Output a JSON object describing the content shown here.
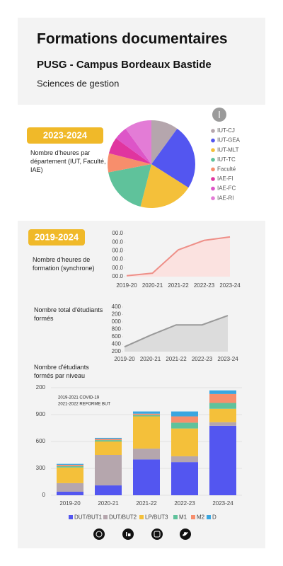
{
  "header": {
    "title": "Formations documentaires",
    "subtitle": "PUSG - Campus Bordeaux Bastide",
    "section": "Sciences de gestion"
  },
  "chart_data": [
    {
      "type": "pie",
      "badge": "2023-2024",
      "title": "Nombre d'heures par département (IUT, Faculté, IAE)",
      "categories": [
        "IUT-CJ",
        "IUT-GEA",
        "IUT-MLT",
        "IUT-TC",
        "Faculté",
        "IAE-FI",
        "IAE-FC",
        "IAE-RI"
      ],
      "values": [
        10,
        24,
        20,
        18,
        7,
        6,
        5,
        10
      ],
      "colors": [
        "#b5a6ad",
        "#5356f0",
        "#f4c03a",
        "#5fc29b",
        "#f78e6c",
        "#e0359f",
        "#dd55c8",
        "#e37cd6"
      ]
    },
    {
      "type": "line",
      "badge": "2019-2024",
      "title": "Nombre d'heures de formation (synchrone)",
      "categories": [
        "2019-20",
        "2020-21",
        "2021-22",
        "2022-23",
        "2023-24"
      ],
      "values": [
        10,
        40,
        310,
        420,
        460
      ],
      "color": "#ee8f88",
      "fill": "#fbe2e0",
      "ylim": [
        0,
        500
      ],
      "yticks": [
        {
          "value": 0,
          "label": "00.0"
        },
        {
          "value": 100,
          "label": "00.0"
        },
        {
          "value": 200,
          "label": "00.0"
        },
        {
          "value": 300,
          "label": "00.0"
        },
        {
          "value": 400,
          "label": "00.0"
        },
        {
          "value": 500,
          "label": "00.0"
        }
      ]
    },
    {
      "type": "line",
      "title": "Nombre total d'étudiants formés",
      "categories": [
        "2019-20",
        "2020-21",
        "2021-22",
        "2022-23",
        "2023-24"
      ],
      "values": [
        330,
        640,
        920,
        920,
        1170
      ],
      "color": "#999999",
      "fill": "#dcdcdc",
      "ylim": [
        200,
        1400
      ],
      "yticks": [
        200,
        400,
        600,
        800,
        {
          "value": 1000,
          "label": "000"
        },
        {
          "value": 1200,
          "label": "200"
        },
        {
          "value": 1400,
          "label": "400"
        }
      ]
    },
    {
      "type": "stacked_bar",
      "title": "Nombre d'étudiants formés par niveau",
      "annotations": [
        "2019-2021 COVID-19",
        "2021-2022  REFORME BUT"
      ],
      "categories": [
        "2019-20",
        "2020-21",
        "2021-22",
        "2022-23",
        "2023-24"
      ],
      "ylim": [
        0,
        1200
      ],
      "yticks": [
        0,
        300,
        600,
        900,
        {
          "value": 1200,
          "label": "200"
        }
      ],
      "series": [
        {
          "name": "DUT/BUT1",
          "color": "#5356f0",
          "values": [
            40,
            110,
            400,
            370,
            775
          ]
        },
        {
          "name": "DUT/BUT2",
          "color": "#b5a6ad",
          "values": [
            95,
            340,
            120,
            65,
            40
          ]
        },
        {
          "name": "LP/BUT3",
          "color": "#f4c03a",
          "values": [
            175,
            150,
            360,
            310,
            150
          ]
        },
        {
          "name": "M1",
          "color": "#5fc29b",
          "values": [
            15,
            15,
            15,
            65,
            65
          ]
        },
        {
          "name": "M2",
          "color": "#f78e6c",
          "values": [
            15,
            15,
            15,
            70,
            100
          ]
        },
        {
          "name": "D",
          "color": "#3aa6e0",
          "values": [
            10,
            10,
            25,
            55,
            40
          ]
        }
      ]
    }
  ]
}
